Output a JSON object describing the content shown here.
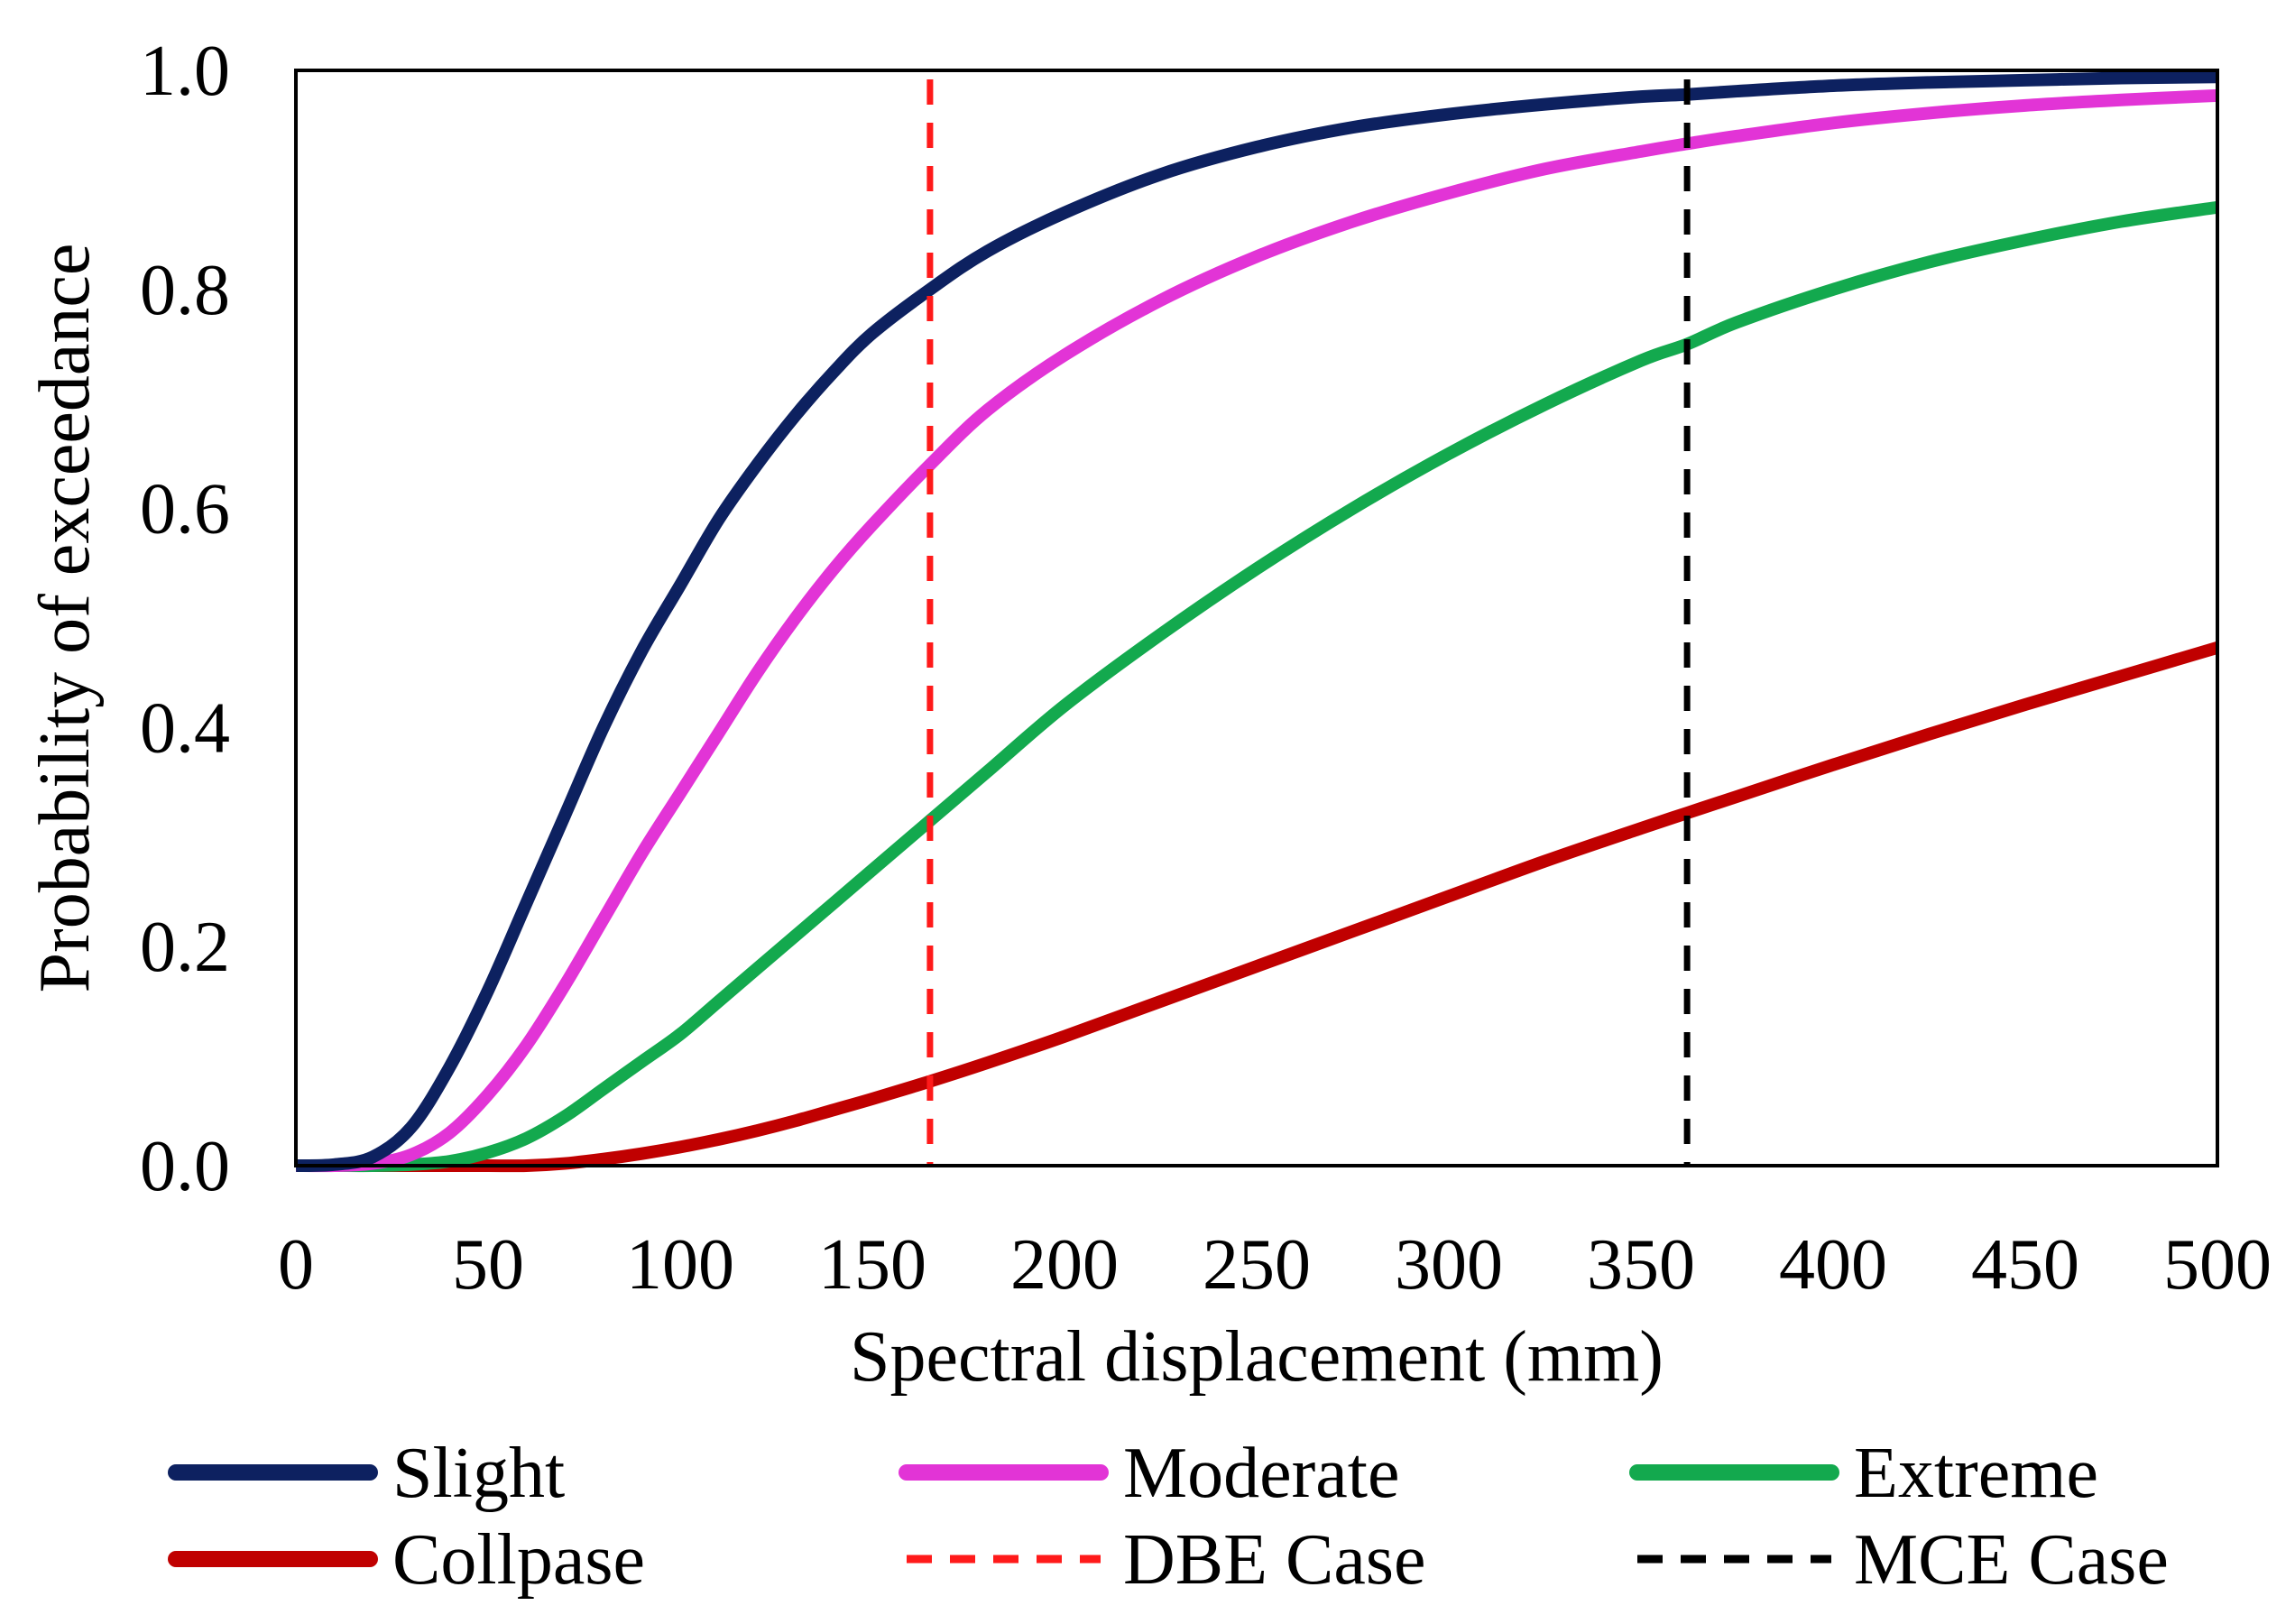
{
  "chart_data": {
    "type": "line",
    "title": "",
    "xlabel": "Spectral displacement (mm)",
    "ylabel": "Probability of exceedance",
    "xlim": [
      0,
      500
    ],
    "ylim": [
      0,
      1.0
    ],
    "x_ticks": [
      "0",
      "50",
      "100",
      "150",
      "200",
      "250",
      "300",
      "350",
      "400",
      "450",
      "500"
    ],
    "y_ticks": [
      "0.0",
      "0.2",
      "0.4",
      "0.6",
      "0.8",
      "1.0"
    ],
    "grid": false,
    "legend_position": "bottom",
    "x": [
      0,
      10,
      20,
      30,
      40,
      50,
      60,
      70,
      80,
      90,
      100,
      110,
      120,
      130,
      140,
      150,
      165,
      180,
      200,
      225,
      250,
      275,
      300,
      325,
      350,
      362,
      375,
      400,
      425,
      450,
      475,
      500
    ],
    "series": [
      {
        "name": "Slight",
        "color": "#0d2160",
        "style": "solid",
        "values": [
          0.0,
          0.001,
          0.008,
          0.035,
          0.09,
          0.16,
          0.24,
          0.32,
          0.4,
          0.47,
          0.53,
          0.59,
          0.64,
          0.685,
          0.725,
          0.76,
          0.8,
          0.835,
          0.87,
          0.905,
          0.93,
          0.948,
          0.96,
          0.969,
          0.976,
          0.978,
          0.981,
          0.986,
          0.989,
          0.991,
          0.993,
          0.994
        ]
      },
      {
        "name": "Moderate",
        "color": "#e234d6",
        "style": "solid",
        "values": [
          0.0,
          0.0,
          0.002,
          0.01,
          0.03,
          0.065,
          0.11,
          0.165,
          0.225,
          0.285,
          0.34,
          0.395,
          0.45,
          0.5,
          0.545,
          0.585,
          0.64,
          0.69,
          0.74,
          0.79,
          0.83,
          0.862,
          0.888,
          0.91,
          0.926,
          0.933,
          0.94,
          0.952,
          0.961,
          0.968,
          0.973,
          0.977
        ]
      },
      {
        "name": "Extreme",
        "color": "#13a94e",
        "style": "solid",
        "values": [
          0.0,
          0.0,
          0.0,
          0.001,
          0.004,
          0.012,
          0.025,
          0.045,
          0.07,
          0.095,
          0.12,
          0.15,
          0.18,
          0.21,
          0.24,
          0.27,
          0.315,
          0.36,
          0.42,
          0.485,
          0.545,
          0.6,
          0.65,
          0.695,
          0.735,
          0.75,
          0.77,
          0.8,
          0.825,
          0.845,
          0.862,
          0.875
        ]
      },
      {
        "name": "Collpase",
        "color": "#c00000",
        "style": "solid",
        "values": [
          0.0,
          0.0,
          0.0,
          0.0,
          0.0,
          0.0,
          0.0,
          0.002,
          0.006,
          0.011,
          0.017,
          0.024,
          0.032,
          0.041,
          0.051,
          0.061,
          0.077,
          0.094,
          0.118,
          0.15,
          0.182,
          0.214,
          0.246,
          0.278,
          0.308,
          0.322,
          0.337,
          0.366,
          0.394,
          0.421,
          0.447,
          0.473
        ]
      }
    ],
    "reference_lines": [
      {
        "name": "DBE Case",
        "color": "#ff1a1a",
        "style": "dashed",
        "x": 165
      },
      {
        "name": "MCE Case",
        "color": "#000000",
        "style": "dashed",
        "x": 362
      }
    ],
    "legend": [
      {
        "label": "Slight",
        "color": "#0d2160",
        "style": "solid"
      },
      {
        "label": "Moderate",
        "color": "#e234d6",
        "style": "solid"
      },
      {
        "label": "Extreme",
        "color": "#13a94e",
        "style": "solid"
      },
      {
        "label": "Collpase",
        "color": "#c00000",
        "style": "solid"
      },
      {
        "label": "DBE Case",
        "color": "#ff1a1a",
        "style": "dashed"
      },
      {
        "label": "MCE Case",
        "color": "#000000",
        "style": "dashed"
      }
    ]
  }
}
